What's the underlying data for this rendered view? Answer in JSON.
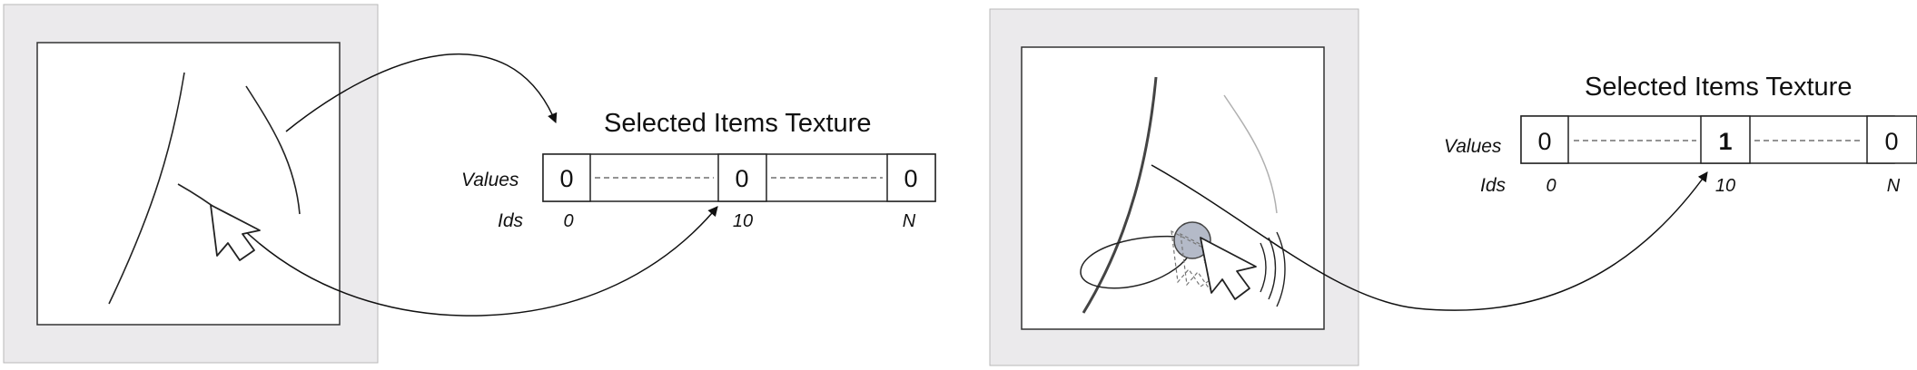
{
  "panels": [
    {
      "texture_title": "Selected Items Texture",
      "row_labels": {
        "values": "Values",
        "ids": "Ids"
      },
      "cells": [
        {
          "value": "0",
          "id": "0"
        },
        {
          "value": "0",
          "id": "10"
        },
        {
          "value": "0",
          "id": "N"
        }
      ],
      "cursor": "cursor-arrow-icon"
    },
    {
      "texture_title": "Selected Items Texture",
      "row_labels": {
        "values": "Values",
        "ids": "Ids"
      },
      "cells": [
        {
          "value": "0",
          "id": "0"
        },
        {
          "value": "1",
          "id": "10"
        },
        {
          "value": "0",
          "id": "N"
        }
      ],
      "cursor": "cursor-click-icon"
    }
  ],
  "colors": {
    "frame_gray": "#ebeaec",
    "highlight_circle": "#b4bac8",
    "stroke": "#222222"
  }
}
